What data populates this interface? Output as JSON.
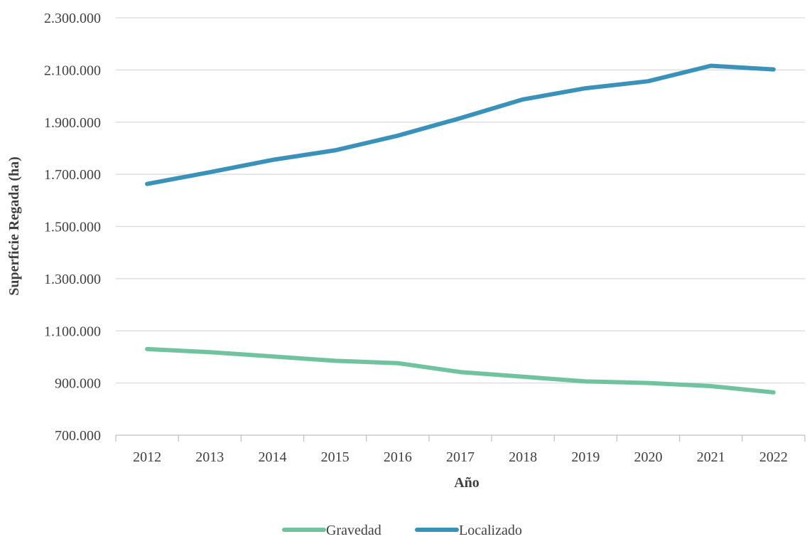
{
  "chart_data": {
    "type": "line",
    "xlabel": "Año",
    "ylabel": "Superficie Regada (ha)",
    "x": [
      "2012",
      "2013",
      "2014",
      "2015",
      "2016",
      "2017",
      "2018",
      "2019",
      "2020",
      "2021",
      "2022"
    ],
    "ylim": [
      700000,
      2300000
    ],
    "yticks": [
      700000,
      900000,
      1100000,
      1300000,
      1500000,
      1700000,
      1900000,
      2100000,
      2300000
    ],
    "ytick_labels": [
      "700.000",
      "900.000",
      "1.100.000",
      "1.300.000",
      "1.500.000",
      "1.700.000",
      "1.900.000",
      "2.100.000",
      "2.300.000"
    ],
    "grid": true,
    "legend_position": "bottom",
    "series": [
      {
        "name": "Gravedad",
        "color": "#71c3a0",
        "values": [
          1030000,
          1018000,
          1002000,
          985000,
          976000,
          942000,
          924000,
          906000,
          900000,
          888000,
          864000
        ]
      },
      {
        "name": "Localizado",
        "color": "#3a92ba",
        "values": [
          1663000,
          1708000,
          1755000,
          1792000,
          1848000,
          1915000,
          1987000,
          2030000,
          2057000,
          2116000,
          2102000
        ]
      }
    ]
  }
}
